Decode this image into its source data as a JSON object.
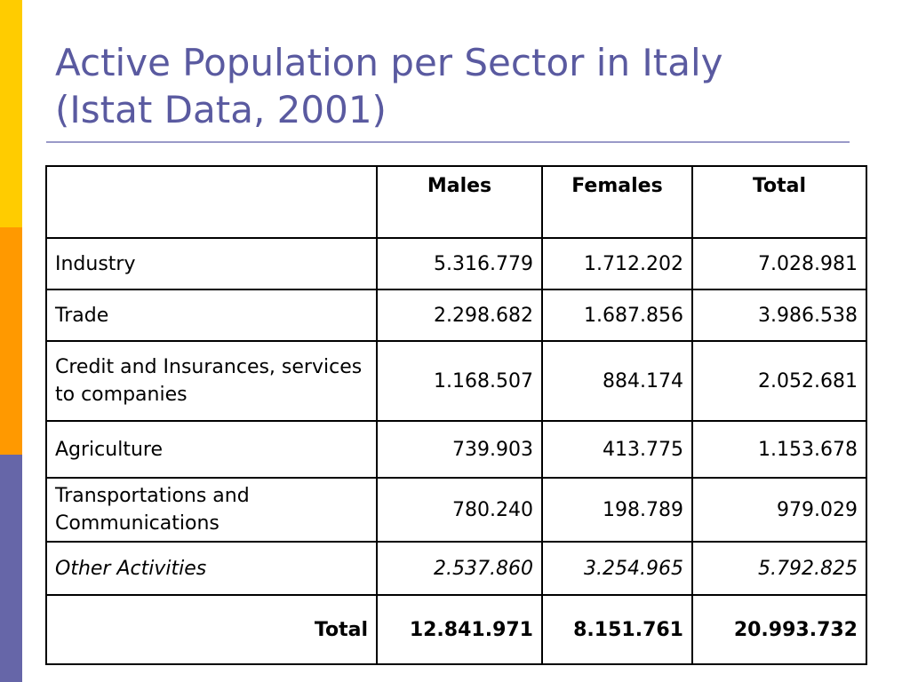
{
  "slide": {
    "title_line1": "Active Population per Sector in Italy",
    "title_line2": "(Istat Data, 2001)",
    "accent_colors": [
      "#FFCC00",
      "#FF9900",
      "#6666A8"
    ],
    "title_color": "#5A5AA0"
  },
  "table": {
    "columns": [
      "",
      "Males",
      "Females",
      "Total"
    ],
    "rows": [
      {
        "sector": "Industry",
        "males": "5.316.779",
        "females": "1.712.202",
        "total": "7.028.981"
      },
      {
        "sector": "Trade",
        "males": "2.298.682",
        "females": "1.687.856",
        "total": "3.986.538"
      },
      {
        "sector": "Credit and Insurances, services to companies",
        "males": "1.168.507",
        "females": "884.174",
        "total": "2.052.681"
      },
      {
        "sector": "Agriculture",
        "males": "739.903",
        "females": "413.775",
        "total": "1.153.678"
      },
      {
        "sector": "Transportations and Communications",
        "males": "780.240",
        "females": "198.789",
        "total": "979.029"
      },
      {
        "sector": "Other Activities",
        "males": "2.537.860",
        "females": "3.254.965",
        "total": "5.792.825"
      }
    ],
    "total_row": {
      "label": "Total",
      "males": "12.841.971",
      "females": "8.151.761",
      "total": "20.993.732"
    }
  }
}
